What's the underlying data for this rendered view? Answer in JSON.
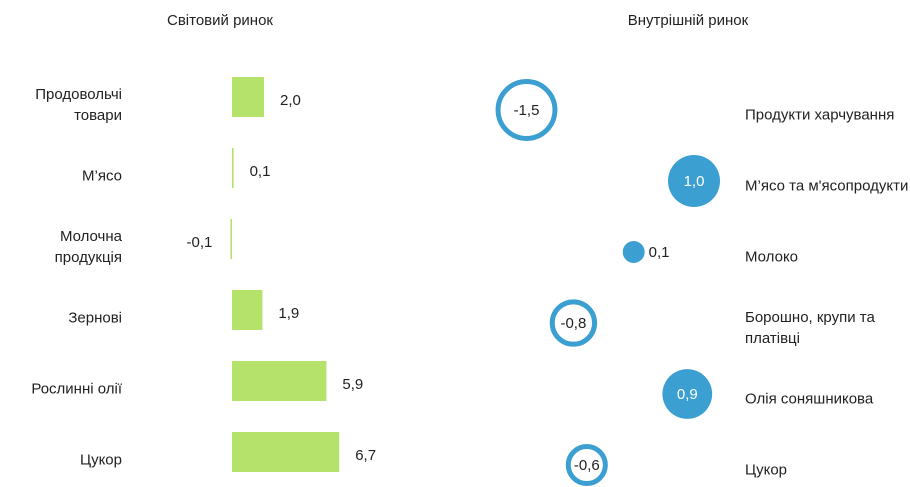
{
  "chart_data": [
    {
      "type": "bar",
      "orientation": "horizontal",
      "title": "Світовий ринок",
      "categories": [
        "Продовольчі товари",
        "М’ясо",
        "Молочна продукція",
        "Зернові",
        "Рослинні олії",
        "Цукор"
      ],
      "values": [
        2.0,
        0.1,
        -0.1,
        1.9,
        5.9,
        6.7
      ],
      "value_labels": [
        "2,0",
        "0,1",
        "-0,1",
        "1,9",
        "5,9",
        "6,7"
      ],
      "color": "#b4e26a"
    },
    {
      "type": "bubble",
      "title": "Внутрішній ринок",
      "categories": [
        "Продукти харчування",
        "М’ясо та м'ясопродукти",
        "Молоко",
        "Борошно, крупи та платівці",
        "Олія соняшникова",
        "Цукор"
      ],
      "values": [
        -1.5,
        1.0,
        0.1,
        -0.8,
        0.9,
        -0.6
      ],
      "value_labels": [
        "-1,5",
        "1,0",
        "0,1",
        "-0,8",
        "0,9",
        "-0,6"
      ],
      "color": "#3c9fd1"
    }
  ]
}
